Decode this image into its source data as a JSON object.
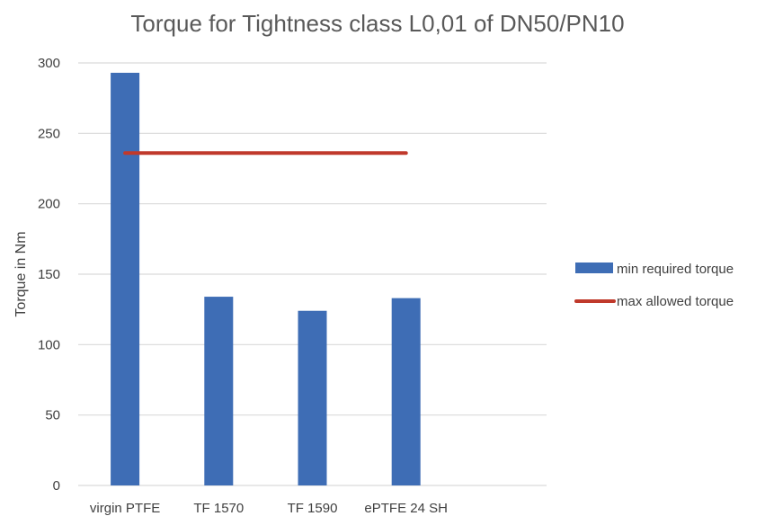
{
  "chart_data": {
    "type": "bar",
    "title": "Torque for Tightness class L0,01 of DN50/PN10",
    "xlabel": "",
    "ylabel": "Torque in Nm",
    "categories": [
      "virgin PTFE",
      "TF 1570",
      "TF 1590",
      "ePTFE 24 SH"
    ],
    "ylim": [
      0,
      300
    ],
    "yticks": [
      0,
      50,
      100,
      150,
      200,
      250,
      300
    ],
    "grid": true,
    "legend_position": "right",
    "series": [
      {
        "name": "min required torque",
        "type": "bar",
        "color": "#3E6DB5",
        "values": [
          293,
          134,
          124,
          133
        ]
      },
      {
        "name": "max allowed torque",
        "type": "line",
        "color": "#C0392B",
        "values": [
          236,
          236,
          236,
          236
        ]
      }
    ]
  }
}
